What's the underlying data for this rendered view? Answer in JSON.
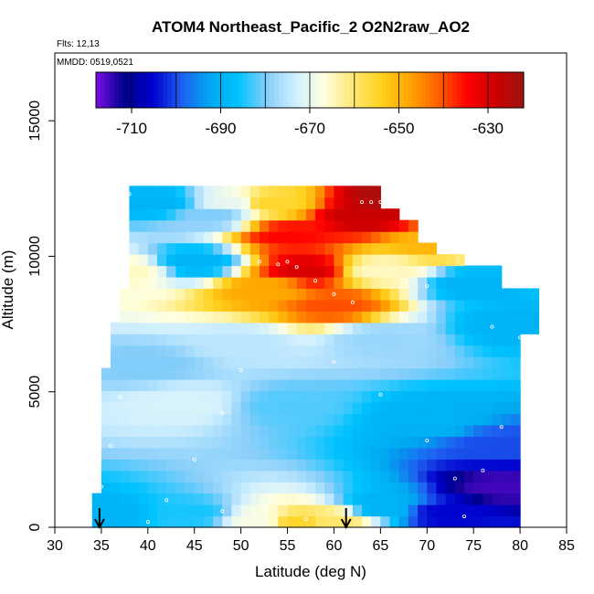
{
  "chart_data": {
    "type": "heatmap",
    "title": "ATOM4 Northeast_Pacific_2 O2N2raw_AO2",
    "flights_label": "Flts: 12,13",
    "dates_label": "MMDD: 0519,0521",
    "xlabel": "Latitude (deg N)",
    "ylabel": "Altitude (m)",
    "xlim": [
      30,
      85
    ],
    "ylim": [
      0,
      17500
    ],
    "xticks": [
      30,
      35,
      40,
      45,
      50,
      55,
      60,
      65,
      70,
      75,
      80,
      85
    ],
    "yticks": [
      0,
      5000,
      10000,
      15000
    ],
    "colorbar": {
      "range": [
        -718,
        -622
      ],
      "ticks": [
        -710,
        -690,
        -670,
        -650,
        -630
      ],
      "colors": [
        "#7a0ee6",
        "#00008b",
        "#0000cd",
        "#1e5ff0",
        "#00a8f0",
        "#00c3ff",
        "#87cefa",
        "#cfefff",
        "#ffffe0",
        "#ffe873",
        "#ffd21f",
        "#ffa500",
        "#ff6000",
        "#ff0000",
        "#cc0000",
        "#a01414"
      ]
    },
    "field_points": [
      {
        "lat": 35,
        "alt": 500,
        "value": -690
      },
      {
        "lat": 45,
        "alt": 500,
        "value": -685
      },
      {
        "lat": 52,
        "alt": 300,
        "value": -668
      },
      {
        "lat": 56,
        "alt": 200,
        "value": -655
      },
      {
        "lat": 60,
        "alt": 300,
        "value": -660
      },
      {
        "lat": 65,
        "alt": 800,
        "value": -690
      },
      {
        "lat": 72,
        "alt": 500,
        "value": -705
      },
      {
        "lat": 78,
        "alt": 1500,
        "value": -715
      },
      {
        "lat": 78,
        "alt": 3000,
        "value": -700
      },
      {
        "lat": 70,
        "alt": 4000,
        "value": -690
      },
      {
        "lat": 55,
        "alt": 4500,
        "value": -682
      },
      {
        "lat": 44,
        "alt": 4600,
        "value": -672
      },
      {
        "lat": 40,
        "alt": 6000,
        "value": -680
      },
      {
        "lat": 50,
        "alt": 6800,
        "value": -675
      },
      {
        "lat": 65,
        "alt": 7000,
        "value": -678
      },
      {
        "lat": 79,
        "alt": 7500,
        "value": -690
      },
      {
        "lat": 60,
        "alt": 8200,
        "value": -640
      },
      {
        "lat": 53,
        "alt": 8800,
        "value": -648
      },
      {
        "lat": 57,
        "alt": 9500,
        "value": -630
      },
      {
        "lat": 65,
        "alt": 9500,
        "value": -665
      },
      {
        "lat": 75,
        "alt": 9000,
        "value": -690
      },
      {
        "lat": 45,
        "alt": 9800,
        "value": -690
      },
      {
        "lat": 38,
        "alt": 9500,
        "value": -665
      },
      {
        "lat": 55,
        "alt": 10800,
        "value": -635
      },
      {
        "lat": 63,
        "alt": 11500,
        "value": -628
      },
      {
        "lat": 66,
        "alt": 12200,
        "value": -624
      },
      {
        "lat": 47,
        "alt": 11500,
        "value": -680
      },
      {
        "lat": 41,
        "alt": 12000,
        "value": -690
      },
      {
        "lat": 49,
        "alt": 12000,
        "value": -670
      },
      {
        "lat": 53,
        "alt": 12000,
        "value": -655
      },
      {
        "lat": 71,
        "alt": 10500,
        "value": -650
      }
    ],
    "observations": [
      {
        "lat": 35,
        "alt": 1500
      },
      {
        "lat": 36,
        "alt": 3000
      },
      {
        "lat": 37,
        "alt": 4800
      },
      {
        "lat": 40,
        "alt": 7600
      },
      {
        "lat": 41,
        "alt": 9300
      },
      {
        "lat": 38,
        "alt": 12300
      },
      {
        "lat": 42,
        "alt": 1000
      },
      {
        "lat": 45,
        "alt": 2500
      },
      {
        "lat": 48,
        "alt": 4200
      },
      {
        "lat": 50,
        "alt": 5800
      },
      {
        "lat": 52,
        "alt": 9800
      },
      {
        "lat": 54,
        "alt": 9700
      },
      {
        "lat": 55,
        "alt": 9800
      },
      {
        "lat": 56,
        "alt": 9600
      },
      {
        "lat": 58,
        "alt": 9100
      },
      {
        "lat": 60,
        "alt": 8600
      },
      {
        "lat": 62,
        "alt": 8300
      },
      {
        "lat": 63,
        "alt": 12000
      },
      {
        "lat": 64,
        "alt": 12000
      },
      {
        "lat": 65,
        "alt": 12000
      },
      {
        "lat": 66,
        "alt": 12000
      },
      {
        "lat": 67,
        "alt": 12000
      },
      {
        "lat": 68,
        "alt": 11600
      },
      {
        "lat": 60,
        "alt": 6100
      },
      {
        "lat": 65,
        "alt": 4900
      },
      {
        "lat": 70,
        "alt": 3200
      },
      {
        "lat": 73,
        "alt": 1800
      },
      {
        "lat": 74,
        "alt": 400
      },
      {
        "lat": 76,
        "alt": 2100
      },
      {
        "lat": 78,
        "alt": 3700
      },
      {
        "lat": 80,
        "alt": 7000
      },
      {
        "lat": 77,
        "alt": 7400
      },
      {
        "lat": 70,
        "alt": 8900
      },
      {
        "lat": 57,
        "alt": 300
      },
      {
        "lat": 48,
        "alt": 600
      },
      {
        "lat": 40,
        "alt": 200
      }
    ],
    "markers": [
      {
        "lat": 34.8
      },
      {
        "lat": 61.3
      }
    ]
  }
}
